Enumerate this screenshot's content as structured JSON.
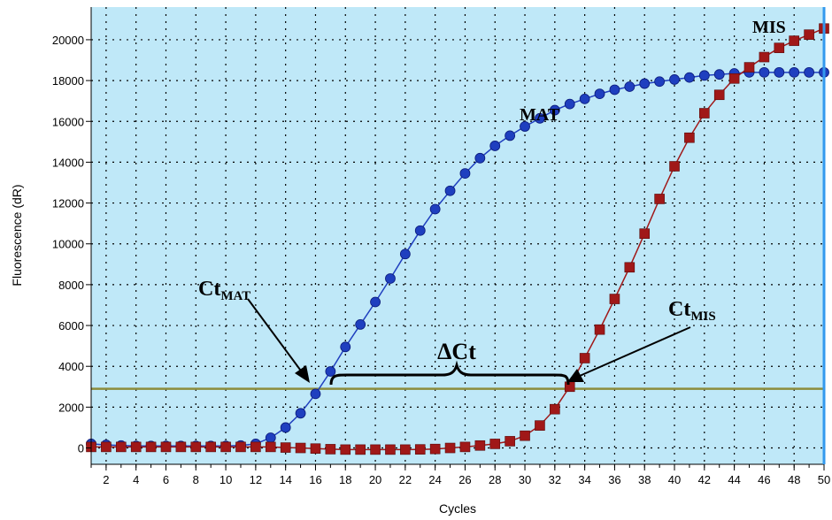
{
  "chart_data": {
    "type": "line",
    "xlabel": "Cycles",
    "ylabel": "Fluorescence (dR)",
    "xlim": [
      1,
      50
    ],
    "ylim": [
      -800,
      21600
    ],
    "x_ticks": [
      2,
      4,
      6,
      8,
      10,
      12,
      14,
      16,
      18,
      20,
      22,
      24,
      26,
      28,
      30,
      32,
      34,
      36,
      38,
      40,
      42,
      44,
      46,
      48,
      50
    ],
    "y_ticks": [
      0,
      2000,
      4000,
      6000,
      8000,
      10000,
      12000,
      14000,
      16000,
      18000,
      20000
    ],
    "grid": true,
    "threshold": 2900,
    "colors": {
      "plot_background": "#bfe8f8",
      "blue_series": "#1f3fbf",
      "red_series": "#a01818",
      "threshold_line": "#8c8c3c"
    },
    "series": [
      {
        "name": "MAT",
        "marker": "circle",
        "x": [
          1,
          2,
          3,
          4,
          5,
          6,
          7,
          8,
          9,
          10,
          11,
          12,
          13,
          14,
          15,
          16,
          17,
          18,
          19,
          20,
          21,
          22,
          23,
          24,
          25,
          26,
          27,
          28,
          29,
          30,
          31,
          32,
          33,
          34,
          35,
          36,
          37,
          38,
          39,
          40,
          41,
          42,
          43,
          44,
          45,
          46,
          47,
          48,
          49,
          50
        ],
        "y": [
          200,
          150,
          120,
          100,
          100,
          100,
          100,
          100,
          100,
          100,
          120,
          200,
          500,
          1000,
          1700,
          2650,
          3750,
          4950,
          6050,
          7150,
          8300,
          9500,
          10650,
          11700,
          12600,
          13450,
          14200,
          14800,
          15300,
          15750,
          16150,
          16550,
          16850,
          17100,
          17350,
          17550,
          17700,
          17850,
          17950,
          18050,
          18150,
          18250,
          18300,
          18350,
          18400,
          18400,
          18400,
          18400,
          18400,
          18400
        ]
      },
      {
        "name": "MIS",
        "marker": "square",
        "x": [
          1,
          2,
          3,
          4,
          5,
          6,
          7,
          8,
          9,
          10,
          11,
          12,
          13,
          14,
          15,
          16,
          17,
          18,
          19,
          20,
          21,
          22,
          23,
          24,
          25,
          26,
          27,
          28,
          29,
          30,
          31,
          32,
          33,
          34,
          35,
          36,
          37,
          38,
          39,
          40,
          41,
          42,
          43,
          44,
          45,
          46,
          47,
          48,
          49,
          50
        ],
        "y": [
          50,
          50,
          50,
          50,
          50,
          50,
          50,
          50,
          50,
          50,
          50,
          50,
          50,
          20,
          0,
          -30,
          -60,
          -80,
          -80,
          -80,
          -80,
          -80,
          -70,
          -50,
          0,
          50,
          120,
          200,
          330,
          600,
          1100,
          1900,
          3000,
          4400,
          5800,
          7300,
          8850,
          10500,
          12200,
          13800,
          15200,
          16400,
          17300,
          18100,
          18650,
          19150,
          19600,
          19950,
          20250,
          20550
        ]
      }
    ],
    "annotations": {
      "mat_label": "MAT",
      "mis_label": "MIS",
      "ct_mat_main": "Ct",
      "ct_mat_sub": "MAT",
      "ct_mis_main": "Ct",
      "ct_mis_sub": "MIS",
      "delta_ct": "ΔCt"
    }
  }
}
